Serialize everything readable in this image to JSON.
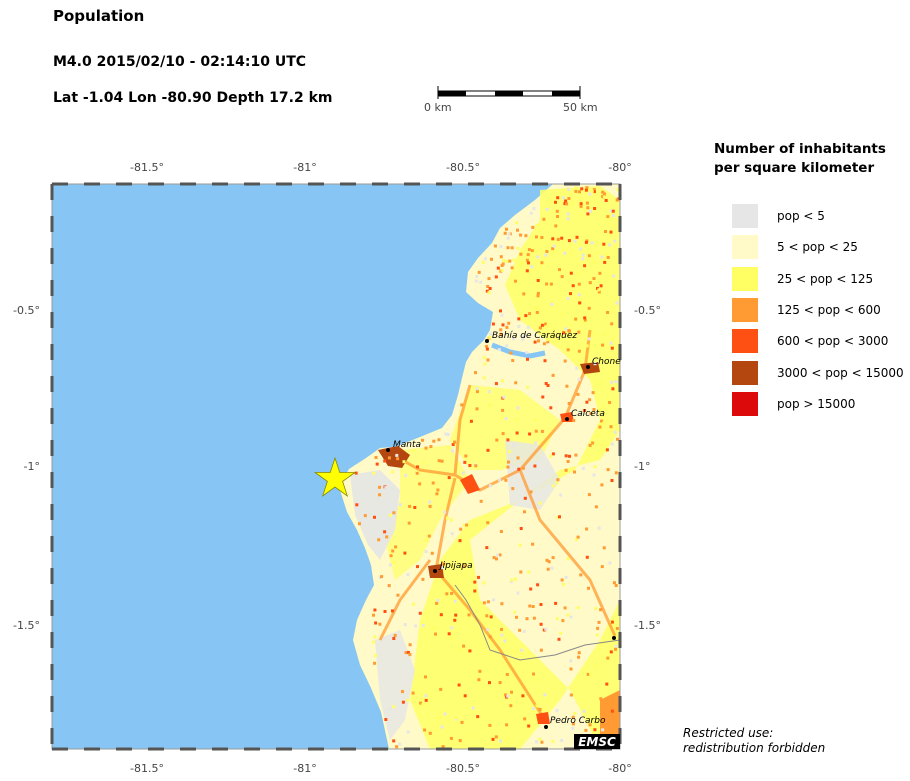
{
  "title": "Population",
  "event": {
    "line": "M4.0  2015/02/10 - 02:14:10 UTC",
    "location": "Lat -1.04    Lon -80.90     Depth  17.2 km"
  },
  "scale_bar": {
    "start_label": "0 km",
    "end_label": "50 km"
  },
  "map": {
    "lon_ticks": [
      "-81.5°",
      "-81°",
      "-80.5°",
      "-80°"
    ],
    "lat_ticks": [
      "-0.5°",
      "-1°",
      "-1.5°"
    ],
    "epicenter": {
      "lat": -1.04,
      "lon": -80.9,
      "marker": "star-icon",
      "color": "#ffff00"
    },
    "cities": [
      "Bahía de Caráquez",
      "Chone",
      "Calceta",
      "Manta",
      "Jipijapa",
      "Pedro Carbo"
    ],
    "colors": {
      "sea": "#87c6f4",
      "land_base": "#fffac8"
    },
    "watermark": "EMSC"
  },
  "legend": {
    "title_line1": "Number of inhabitants",
    "title_line2": "per square kilometer",
    "items": [
      {
        "label": "pop < 5",
        "color": "#e6e6e6"
      },
      {
        "label": "5 < pop < 25",
        "color": "#fffac8"
      },
      {
        "label": "25 < pop < 125",
        "color": "#ffff64"
      },
      {
        "label": "125 < pop < 600",
        "color": "#ff9b32"
      },
      {
        "label": "600 < pop < 3000",
        "color": "#ff5014"
      },
      {
        "label": "3000 < pop < 15000",
        "color": "#b4460f"
      },
      {
        "label": "pop > 15000",
        "color": "#dc0a0a"
      }
    ]
  },
  "note": {
    "line1": "Restricted use:",
    "line2": "redistribution forbidden"
  }
}
